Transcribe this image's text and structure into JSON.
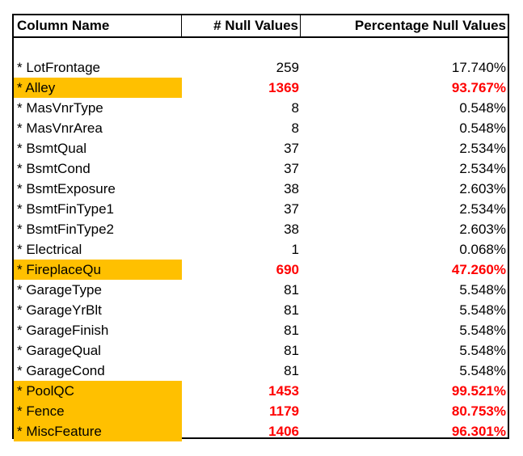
{
  "colors": {
    "highlight_fill": "#ffc000",
    "highlight_text": "#ff0000",
    "border": "#000000"
  },
  "table": {
    "headers": {
      "name": "Column Name",
      "count": "# Null Values",
      "pct": "Percentage Null Values"
    },
    "rows": [
      {
        "name": "* LotFrontage",
        "count": "259",
        "pct": "17.740%",
        "highlight": false
      },
      {
        "name": "* Alley",
        "count": "1369",
        "pct": "93.767%",
        "highlight": true
      },
      {
        "name": "* MasVnrType",
        "count": "8",
        "pct": "0.548%",
        "highlight": false
      },
      {
        "name": "* MasVnrArea",
        "count": "8",
        "pct": "0.548%",
        "highlight": false
      },
      {
        "name": "* BsmtQual",
        "count": "37",
        "pct": "2.534%",
        "highlight": false
      },
      {
        "name": "* BsmtCond",
        "count": "37",
        "pct": "2.534%",
        "highlight": false
      },
      {
        "name": "* BsmtExposure",
        "count": "38",
        "pct": "2.603%",
        "highlight": false
      },
      {
        "name": "* BsmtFinType1",
        "count": "37",
        "pct": "2.534%",
        "highlight": false
      },
      {
        "name": "* BsmtFinType2",
        "count": "38",
        "pct": "2.603%",
        "highlight": false
      },
      {
        "name": "* Electrical",
        "count": "1",
        "pct": "0.068%",
        "highlight": false
      },
      {
        "name": "* FireplaceQu",
        "count": "690",
        "pct": "47.260%",
        "highlight": true
      },
      {
        "name": "* GarageType",
        "count": "81",
        "pct": "5.548%",
        "highlight": false
      },
      {
        "name": "* GarageYrBlt",
        "count": "81",
        "pct": "5.548%",
        "highlight": false
      },
      {
        "name": "* GarageFinish",
        "count": "81",
        "pct": "5.548%",
        "highlight": false
      },
      {
        "name": "* GarageQual",
        "count": "81",
        "pct": "5.548%",
        "highlight": false
      },
      {
        "name": "* GarageCond",
        "count": "81",
        "pct": "5.548%",
        "highlight": false
      },
      {
        "name": "* PoolQC",
        "count": "1453",
        "pct": "99.521%",
        "highlight": true
      },
      {
        "name": "* Fence",
        "count": "1179",
        "pct": "80.753%",
        "highlight": true
      },
      {
        "name": "* MiscFeature",
        "count": "1406",
        "pct": "96.301%",
        "highlight": true
      }
    ]
  }
}
